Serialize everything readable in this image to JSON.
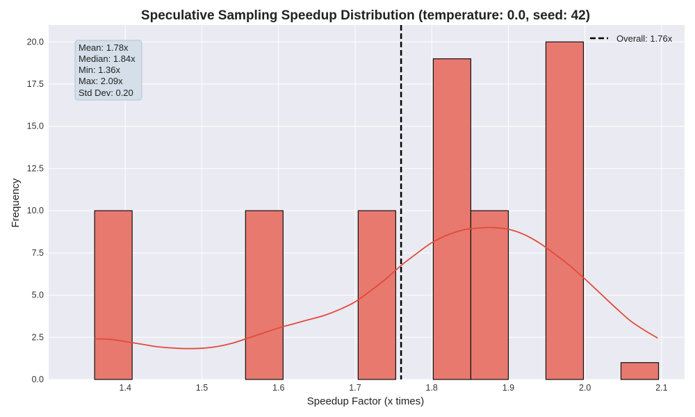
{
  "chart_data": {
    "type": "bar",
    "title": "Speculative Sampling Speedup Distribution (temperature: 0.0, seed: 42)",
    "xlabel": "Speedup Factor (x times)",
    "ylabel": "Frequency",
    "xlim": [
      1.3,
      2.13
    ],
    "ylim": [
      0,
      21
    ],
    "grid": true,
    "x_ticks": [
      {
        "value": 1.4,
        "label": "1.4"
      },
      {
        "value": 1.5,
        "label": "1.5"
      },
      {
        "value": 1.6,
        "label": "1.6"
      },
      {
        "value": 1.7,
        "label": "1.7"
      },
      {
        "value": 1.8,
        "label": "1.8"
      },
      {
        "value": 1.9,
        "label": "1.9"
      },
      {
        "value": 2.0,
        "label": "2.0"
      },
      {
        "value": 2.1,
        "label": "2.1"
      }
    ],
    "y_ticks": [
      {
        "value": 0,
        "label": "0.0"
      },
      {
        "value": 2.5,
        "label": "2.5"
      },
      {
        "value": 5,
        "label": "5.0"
      },
      {
        "value": 7.5,
        "label": "7.5"
      },
      {
        "value": 10,
        "label": "10.0"
      },
      {
        "value": 12.5,
        "label": "12.5"
      },
      {
        "value": 15,
        "label": "15.0"
      },
      {
        "value": 17.5,
        "label": "17.5"
      },
      {
        "value": 20,
        "label": "20.0"
      }
    ],
    "bins": [
      {
        "start": 1.36,
        "end": 1.409,
        "count": 10
      },
      {
        "start": 1.557,
        "end": 1.606,
        "count": 10
      },
      {
        "start": 1.704,
        "end": 1.753,
        "count": 10
      },
      {
        "start": 1.802,
        "end": 1.851,
        "count": 19
      },
      {
        "start": 1.851,
        "end": 1.9,
        "count": 10
      },
      {
        "start": 1.949,
        "end": 1.998,
        "count": 20
      },
      {
        "start": 2.047,
        "end": 2.096,
        "count": 1
      }
    ],
    "kde_curve": [
      [
        1.36,
        2.4
      ],
      [
        1.38,
        2.38
      ],
      [
        1.4,
        2.25
      ],
      [
        1.42,
        2.1
      ],
      [
        1.44,
        1.95
      ],
      [
        1.46,
        1.87
      ],
      [
        1.48,
        1.83
      ],
      [
        1.5,
        1.85
      ],
      [
        1.52,
        1.95
      ],
      [
        1.54,
        2.15
      ],
      [
        1.56,
        2.45
      ],
      [
        1.58,
        2.75
      ],
      [
        1.6,
        3.05
      ],
      [
        1.62,
        3.3
      ],
      [
        1.64,
        3.55
      ],
      [
        1.66,
        3.8
      ],
      [
        1.68,
        4.15
      ],
      [
        1.7,
        4.6
      ],
      [
        1.72,
        5.25
      ],
      [
        1.74,
        5.95
      ],
      [
        1.76,
        6.75
      ],
      [
        1.78,
        7.45
      ],
      [
        1.8,
        8.1
      ],
      [
        1.82,
        8.55
      ],
      [
        1.84,
        8.85
      ],
      [
        1.86,
        8.97
      ],
      [
        1.88,
        9.0
      ],
      [
        1.9,
        8.9
      ],
      [
        1.92,
        8.6
      ],
      [
        1.94,
        8.1
      ],
      [
        1.96,
        7.45
      ],
      [
        1.98,
        6.75
      ],
      [
        2.0,
        5.95
      ],
      [
        2.02,
        5.1
      ],
      [
        2.04,
        4.25
      ],
      [
        2.06,
        3.45
      ],
      [
        2.08,
        2.85
      ],
      [
        2.095,
        2.45
      ]
    ],
    "overall_line": {
      "x": 1.76,
      "legend_label": "Overall: 1.76x"
    },
    "legend_position": "top-right",
    "stats_box_lines": [
      "Mean: 1.78x",
      "Median: 1.84x",
      "Min: 1.36x",
      "Max: 2.09x",
      "Std Dev: 0.20"
    ],
    "colors": {
      "bar_fill": "#e8796f",
      "bar_edge": "#111111",
      "kde_line": "#e24a3b",
      "overall_line": "#000000",
      "plot_bg": "#eaeaf2",
      "grid": "#ffffff",
      "stats_box_bg": "#d4dfe9",
      "stats_box_edge": "#b3c4d4"
    }
  }
}
